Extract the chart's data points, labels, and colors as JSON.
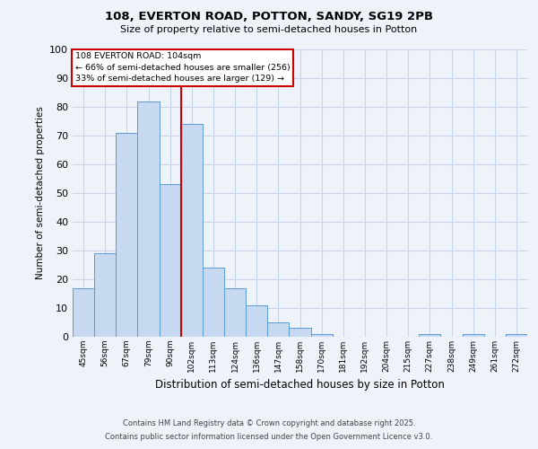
{
  "title1": "108, EVERTON ROAD, POTTON, SANDY, SG19 2PB",
  "title2": "Size of property relative to semi-detached houses in Potton",
  "xlabel": "Distribution of semi-detached houses by size in Potton",
  "ylabel": "Number of semi-detached properties",
  "bin_labels": [
    "45sqm",
    "56sqm",
    "67sqm",
    "79sqm",
    "90sqm",
    "102sqm",
    "113sqm",
    "124sqm",
    "136sqm",
    "147sqm",
    "158sqm",
    "170sqm",
    "181sqm",
    "192sqm",
    "204sqm",
    "215sqm",
    "227sqm",
    "238sqm",
    "249sqm",
    "261sqm",
    "272sqm"
  ],
  "bar_values": [
    17,
    29,
    71,
    82,
    53,
    74,
    24,
    17,
    11,
    5,
    3,
    1,
    0,
    0,
    0,
    0,
    1,
    0,
    1,
    0,
    1
  ],
  "bar_color": "#c6d9f0",
  "bar_edge_color": "#5b9bd5",
  "vline_x": 5.0,
  "annotation_title": "108 EVERTON ROAD: 104sqm",
  "annotation_line1": "← 66% of semi-detached houses are smaller (256)",
  "annotation_line2": "33% of semi-detached houses are larger (129) →",
  "annotation_box_color": "#ffffff",
  "annotation_box_edge_color": "#cc0000",
  "vline_color": "#cc0000",
  "background_color": "#eef2f9",
  "grid_color": "#c8d4e8",
  "footer_line1": "Contains HM Land Registry data © Crown copyright and database right 2025.",
  "footer_line2": "Contains public sector information licensed under the Open Government Licence v3.0.",
  "ylim": [
    0,
    100
  ],
  "yticks": [
    0,
    10,
    20,
    30,
    40,
    50,
    60,
    70,
    80,
    90,
    100
  ]
}
